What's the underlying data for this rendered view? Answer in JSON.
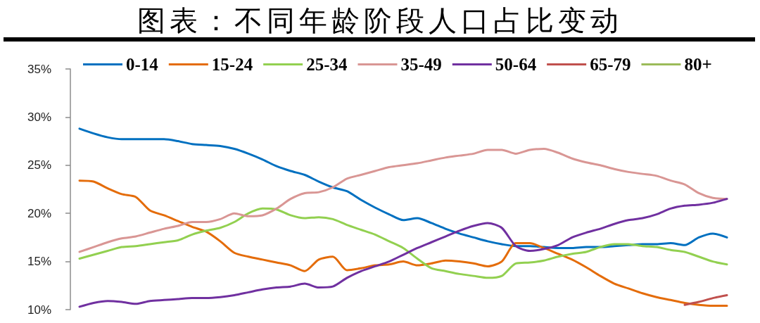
{
  "chart_data": {
    "type": "line",
    "title": "图表：不同年龄阶段人口占比变动",
    "categories": [
      null,
      null,
      null,
      null,
      null,
      null,
      null,
      null,
      null,
      null,
      null,
      null,
      null,
      null,
      null,
      null,
      null,
      null,
      null,
      null,
      null,
      null,
      null,
      null,
      null,
      null,
      null,
      null,
      null,
      null,
      null,
      null,
      null,
      null,
      null,
      null,
      null,
      null,
      null,
      null,
      null,
      null,
      null,
      null,
      null,
      null,
      null
    ],
    "series": [
      {
        "name": "0-14",
        "color": "#0070c0",
        "values": [
          28.8,
          28.3,
          27.9,
          27.7,
          27.7,
          27.7,
          27.7,
          27.5,
          27.2,
          27.1,
          27.0,
          26.7,
          26.2,
          25.6,
          24.9,
          24.4,
          24.0,
          23.3,
          22.7,
          22.3,
          21.4,
          20.6,
          19.9,
          19.3,
          19.5,
          19.0,
          18.4,
          17.9,
          17.5,
          17.1,
          16.8,
          16.6,
          16.6,
          16.5,
          16.4,
          16.4,
          16.5,
          16.5,
          16.6,
          16.7,
          16.8,
          16.8,
          16.9,
          16.7,
          17.5,
          17.9,
          17.5
        ]
      },
      {
        "name": "15-24",
        "color": "#e46c0a",
        "values": [
          23.4,
          23.3,
          22.6,
          22.0,
          21.7,
          20.3,
          19.8,
          19.2,
          18.6,
          18.1,
          17.1,
          15.9,
          15.5,
          15.2,
          14.9,
          14.6,
          14.0,
          15.2,
          15.5,
          14.1,
          14.3,
          14.6,
          14.7,
          15.0,
          14.6,
          14.8,
          15.1,
          15.0,
          14.8,
          14.5,
          15.0,
          16.9,
          16.9,
          16.4,
          15.8,
          15.2,
          14.4,
          13.5,
          12.7,
          12.2,
          11.7,
          11.3,
          11.0,
          10.7,
          10.5,
          10.4,
          10.4
        ]
      },
      {
        "name": "25-34",
        "color": "#92d050",
        "values": [
          15.3,
          15.7,
          16.1,
          16.5,
          16.6,
          16.8,
          17.0,
          17.2,
          17.8,
          18.2,
          18.5,
          19.1,
          20.0,
          20.5,
          20.4,
          19.8,
          19.5,
          19.6,
          19.4,
          18.8,
          18.3,
          17.8,
          17.1,
          16.4,
          15.3,
          14.3,
          14.0,
          13.7,
          13.5,
          13.3,
          13.5,
          14.8,
          14.9,
          15.1,
          15.5,
          15.8,
          16.0,
          16.5,
          16.8,
          16.8,
          16.6,
          16.5,
          16.2,
          16.0,
          15.5,
          15.0,
          14.7
        ]
      },
      {
        "name": "35-49",
        "color": "#d99694",
        "values": [
          16.0,
          16.5,
          17.0,
          17.4,
          17.6,
          18.0,
          18.4,
          18.7,
          19.1,
          19.1,
          19.4,
          20.0,
          19.7,
          19.8,
          20.5,
          21.5,
          22.1,
          22.2,
          22.7,
          23.6,
          24.0,
          24.4,
          24.8,
          25.0,
          25.2,
          25.5,
          25.8,
          26.0,
          26.2,
          26.6,
          26.6,
          26.2,
          26.6,
          26.7,
          26.3,
          25.7,
          25.3,
          25.0,
          24.6,
          24.3,
          24.1,
          23.9,
          23.4,
          23.0,
          22.1,
          21.6,
          21.5
        ]
      },
      {
        "name": "50-64",
        "color": "#7030a0",
        "values": [
          10.3,
          10.7,
          10.9,
          10.8,
          10.6,
          10.9,
          11.0,
          11.1,
          11.2,
          11.2,
          11.3,
          11.5,
          11.8,
          12.1,
          12.3,
          12.4,
          12.7,
          12.3,
          12.4,
          13.3,
          14.0,
          14.5,
          15.0,
          15.7,
          16.4,
          17.0,
          17.6,
          18.2,
          18.7,
          19.0,
          18.5,
          16.6,
          16.1,
          16.3,
          16.7,
          17.5,
          18.0,
          18.4,
          18.9,
          19.3,
          19.5,
          19.9,
          20.5,
          20.8,
          20.9,
          21.1,
          21.5
        ]
      },
      {
        "name": "65-79",
        "color": "#c0504d",
        "values": [
          null,
          null,
          null,
          null,
          null,
          null,
          null,
          null,
          null,
          null,
          null,
          null,
          null,
          null,
          null,
          null,
          null,
          null,
          null,
          null,
          null,
          null,
          null,
          null,
          null,
          null,
          null,
          null,
          null,
          null,
          null,
          null,
          null,
          null,
          null,
          null,
          null,
          null,
          null,
          null,
          null,
          null,
          null,
          10.5,
          10.8,
          11.2,
          11.5
        ]
      },
      {
        "name": "80+",
        "color": "#9bbb59",
        "values": [
          null,
          null,
          null,
          null,
          null,
          null,
          null,
          null,
          null,
          null,
          null,
          null,
          null,
          null,
          null,
          null,
          null,
          null,
          null,
          null,
          null,
          null,
          null,
          null,
          null,
          null,
          null,
          null,
          null,
          null,
          null,
          null,
          null,
          null,
          null,
          null,
          null,
          null,
          null,
          null,
          null,
          null,
          null,
          null,
          null,
          null,
          null
        ]
      }
    ],
    "ylim": [
      10,
      35
    ],
    "yticks": [
      {
        "value": 10,
        "label": "10%"
      },
      {
        "value": 15,
        "label": "15%"
      },
      {
        "value": 20,
        "label": "20%"
      },
      {
        "value": 25,
        "label": "25%"
      },
      {
        "value": 30,
        "label": "30%"
      },
      {
        "value": 35,
        "label": "35%"
      }
    ],
    "grid": false,
    "legend": "top",
    "tick_labels": "y",
    "marker": "none",
    "line_style": "solid"
  }
}
